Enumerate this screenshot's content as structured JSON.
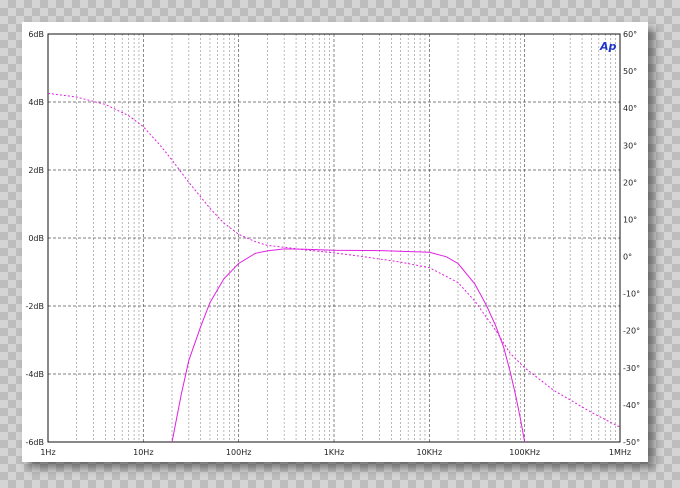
{
  "chart_data": {
    "type": "line",
    "title": "",
    "xlabel": "",
    "ylabel": "",
    "x_scale": "log",
    "xlim": [
      1,
      1000000
    ],
    "ylim": [
      -6,
      6
    ],
    "y2lim": [
      -50,
      60
    ],
    "grid": true,
    "x_ticks": [
      {
        "value": 1,
        "label": "1Hz"
      },
      {
        "value": 10,
        "label": "10Hz"
      },
      {
        "value": 100,
        "label": "100Hz"
      },
      {
        "value": 1000,
        "label": "1KHz"
      },
      {
        "value": 10000,
        "label": "10KHz"
      },
      {
        "value": 100000,
        "label": "100KHz"
      },
      {
        "value": 1000000,
        "label": "1MHz"
      }
    ],
    "y_ticks": [
      {
        "value": 6,
        "label": "6dB"
      },
      {
        "value": 4,
        "label": "4dB"
      },
      {
        "value": 2,
        "label": "2dB"
      },
      {
        "value": 0,
        "label": "0dB"
      },
      {
        "value": -2,
        "label": "-2dB"
      },
      {
        "value": -4,
        "label": "-4dB"
      },
      {
        "value": -6,
        "label": "-6dB"
      }
    ],
    "y2_ticks": [
      {
        "value": 60,
        "label": "60°"
      },
      {
        "value": 50,
        "label": "50°"
      },
      {
        "value": 40,
        "label": "40°"
      },
      {
        "value": 30,
        "label": "30°"
      },
      {
        "value": 20,
        "label": "20°"
      },
      {
        "value": 10,
        "label": "10°"
      },
      {
        "value": 0,
        "label": "0°"
      },
      {
        "value": -10,
        "label": "-10°"
      },
      {
        "value": -20,
        "label": "-20°"
      },
      {
        "value": -30,
        "label": "-30°"
      },
      {
        "value": -40,
        "label": "-40°"
      },
      {
        "value": -50,
        "label": "-50°"
      }
    ],
    "series": [
      {
        "axis": "left",
        "style": "solid",
        "color": "#e020e0",
        "points": [
          [
            20,
            -6
          ],
          [
            25,
            -4.6
          ],
          [
            30,
            -3.6
          ],
          [
            40,
            -2.6
          ],
          [
            50,
            -1.9
          ],
          [
            70,
            -1.2
          ],
          [
            100,
            -0.75
          ],
          [
            150,
            -0.45
          ],
          [
            200,
            -0.38
          ],
          [
            300,
            -0.32
          ],
          [
            500,
            -0.33
          ],
          [
            1000,
            -0.36
          ],
          [
            3000,
            -0.37
          ],
          [
            10000,
            -0.42
          ],
          [
            15000,
            -0.55
          ],
          [
            20000,
            -0.75
          ],
          [
            30000,
            -1.35
          ],
          [
            40000,
            -2.0
          ],
          [
            50000,
            -2.6
          ],
          [
            60000,
            -3.2
          ],
          [
            70000,
            -3.9
          ],
          [
            80000,
            -4.6
          ],
          [
            90000,
            -5.3
          ],
          [
            100000,
            -6
          ]
        ]
      },
      {
        "axis": "right",
        "style": "dashed",
        "color": "#e020e0",
        "points": [
          [
            1,
            44
          ],
          [
            2,
            43
          ],
          [
            4,
            41
          ],
          [
            7,
            38
          ],
          [
            10,
            35
          ],
          [
            15,
            30
          ],
          [
            20,
            26
          ],
          [
            30,
            20
          ],
          [
            50,
            13
          ],
          [
            70,
            9
          ],
          [
            100,
            6
          ],
          [
            150,
            4
          ],
          [
            200,
            3
          ],
          [
            300,
            2.5
          ],
          [
            500,
            1.8
          ],
          [
            1000,
            1
          ],
          [
            2000,
            0
          ],
          [
            5000,
            -1.5
          ],
          [
            10000,
            -3
          ],
          [
            20000,
            -7
          ],
          [
            30000,
            -12
          ],
          [
            50000,
            -20
          ],
          [
            70000,
            -26
          ],
          [
            100000,
            -30
          ],
          [
            200000,
            -36
          ],
          [
            500000,
            -42
          ],
          [
            1000000,
            -46
          ]
        ]
      }
    ],
    "annotations": [
      {
        "text": "Ap",
        "placement": "top-right",
        "color": "#1f37c9"
      }
    ]
  }
}
